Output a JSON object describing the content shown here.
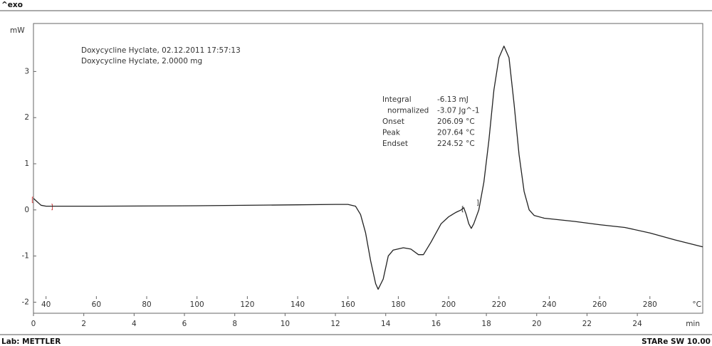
{
  "header": "^exo",
  "footer_left": "Lab: METTLER",
  "footer_right": "STARe SW 10.00",
  "chart_data": {
    "type": "line",
    "ylabel": "mW",
    "xlabel": "°C",
    "x2label": "min",
    "annotations": [
      "Doxycycline Hyclate, 02.12.2011 17:57:13",
      "Doxycycline Hyclate, 2.0000 mg"
    ],
    "results": [
      [
        "Integral",
        "-6.13 mJ"
      ],
      [
        "normalized",
        "-3.07 Jg^-1"
      ],
      [
        "Onset",
        "206.09 °C"
      ],
      [
        "Peak",
        "207.64 °C"
      ],
      [
        "Endset",
        "224.52 °C"
      ]
    ],
    "x": [
      35,
      36,
      38,
      40,
      60,
      100,
      140,
      155,
      160,
      163,
      165,
      167,
      169,
      171,
      172,
      174,
      176,
      178,
      182,
      185,
      188,
      190,
      193,
      197,
      200,
      203,
      205,
      206,
      207,
      208,
      209,
      210,
      212,
      214,
      216,
      218,
      220,
      222,
      224,
      226,
      228,
      230,
      232,
      234,
      238,
      250,
      260,
      270,
      280,
      290,
      301
    ],
    "series": [
      {
        "color": "#222222",
        "values": [
          0.25,
          0.2,
          0.1,
          0.08,
          0.08,
          0.09,
          0.11,
          0.12,
          0.12,
          0.08,
          -0.1,
          -0.5,
          -1.1,
          -1.6,
          -1.72,
          -1.5,
          -1.0,
          -0.87,
          -0.82,
          -0.85,
          -0.97,
          -0.97,
          -0.7,
          -0.3,
          -0.15,
          -0.05,
          0.0,
          0.05,
          -0.1,
          -0.3,
          -0.4,
          -0.3,
          0.0,
          0.6,
          1.5,
          2.6,
          3.3,
          3.55,
          3.3,
          2.3,
          1.2,
          0.4,
          0.0,
          -0.12,
          -0.18,
          -0.25,
          -0.32,
          -0.38,
          -0.5,
          -0.65,
          -0.8
        ]
      }
    ],
    "xlim": [
      35,
      301
    ],
    "xticks": [
      40,
      60,
      80,
      100,
      120,
      140,
      160,
      180,
      200,
      220,
      240,
      260,
      280
    ],
    "x2lim": [
      0,
      26.6
    ],
    "x2ticks": [
      0,
      2,
      4,
      6,
      8,
      10,
      12,
      14,
      16,
      18,
      20,
      22,
      24
    ],
    "ylim": [
      -2.24,
      4.04
    ],
    "yticks": [
      -2,
      -1,
      0,
      1,
      2,
      3
    ]
  }
}
